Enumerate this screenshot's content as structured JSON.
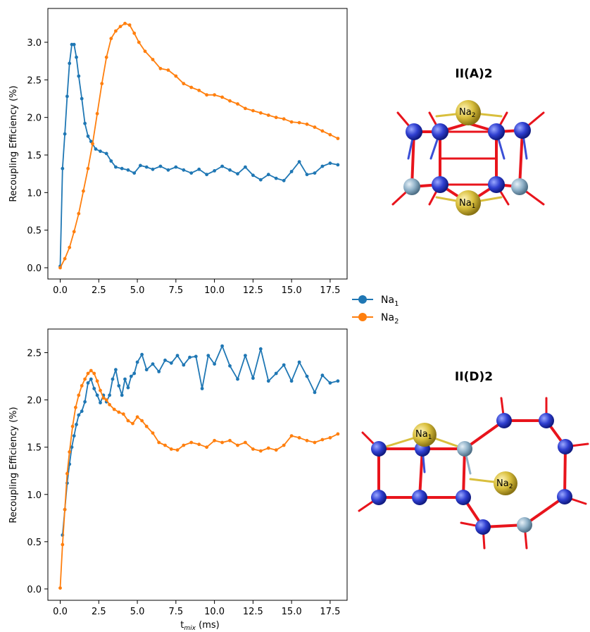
{
  "chart_data": [
    {
      "type": "line",
      "xlabel": "",
      "ylabel": "Recoupling Efficiency (%)",
      "xlim": [
        -0.8,
        18.6
      ],
      "ylim": [
        -0.15,
        3.45
      ],
      "xticks": [
        "0.0",
        "2.5",
        "5.0",
        "7.5",
        "10.0",
        "12.5",
        "15.0",
        "17.5"
      ],
      "yticks": [
        "0.0",
        "0.5",
        "1.0",
        "1.5",
        "2.0",
        "2.5",
        "3.0"
      ],
      "series": [
        {
          "name": "Na1",
          "color": "#1f77b4",
          "x": [
            0,
            0.15,
            0.3,
            0.45,
            0.6,
            0.75,
            0.9,
            1.05,
            1.2,
            1.4,
            1.6,
            1.8,
            2.0,
            2.3,
            2.6,
            3.0,
            3.3,
            3.6,
            4.0,
            4.4,
            4.8,
            5.2,
            5.6,
            6.0,
            6.5,
            7.0,
            7.5,
            8.0,
            8.5,
            9.0,
            9.5,
            10.0,
            10.5,
            11.0,
            11.5,
            12.0,
            12.5,
            13.0,
            13.5,
            14.0,
            14.5,
            15.0,
            15.5,
            16.0,
            16.5,
            17.0,
            17.5,
            18.0
          ],
          "y": [
            0.02,
            1.32,
            1.78,
            2.28,
            2.72,
            2.97,
            2.97,
            2.8,
            2.55,
            2.25,
            1.92,
            1.75,
            1.68,
            1.58,
            1.55,
            1.52,
            1.42,
            1.34,
            1.32,
            1.3,
            1.26,
            1.36,
            1.34,
            1.31,
            1.35,
            1.3,
            1.34,
            1.3,
            1.26,
            1.31,
            1.24,
            1.29,
            1.35,
            1.3,
            1.25,
            1.34,
            1.23,
            1.17,
            1.24,
            1.19,
            1.16,
            1.28,
            1.41,
            1.24,
            1.26,
            1.35,
            1.39,
            1.37
          ]
        },
        {
          "name": "Na2",
          "color": "#ff7f0e",
          "x": [
            0,
            0.3,
            0.6,
            0.9,
            1.2,
            1.5,
            1.8,
            2.1,
            2.4,
            2.7,
            3.0,
            3.3,
            3.6,
            3.9,
            4.2,
            4.5,
            4.8,
            5.1,
            5.5,
            6.0,
            6.5,
            7.0,
            7.5,
            8.0,
            8.5,
            9.0,
            9.5,
            10.0,
            10.5,
            11.0,
            11.5,
            12.0,
            12.5,
            13.0,
            13.5,
            14.0,
            14.5,
            15.0,
            15.5,
            16.0,
            16.5,
            17.0,
            17.5,
            18.0
          ],
          "y": [
            0.0,
            0.12,
            0.27,
            0.48,
            0.72,
            1.02,
            1.32,
            1.65,
            2.05,
            2.45,
            2.8,
            3.05,
            3.15,
            3.21,
            3.25,
            3.23,
            3.12,
            3.0,
            2.88,
            2.77,
            2.65,
            2.63,
            2.55,
            2.45,
            2.4,
            2.36,
            2.3,
            2.3,
            2.27,
            2.22,
            2.18,
            2.12,
            2.09,
            2.06,
            2.03,
            2.0,
            1.98,
            1.94,
            1.93,
            1.91,
            1.87,
            1.82,
            1.77,
            1.72
          ]
        }
      ]
    },
    {
      "type": "line",
      "xlabel": "t_mix (ms)",
      "ylabel": "Recoupling Efficiency (%)",
      "xlim": [
        -0.8,
        18.6
      ],
      "ylim": [
        -0.12,
        2.75
      ],
      "xticks": [
        "0.0",
        "2.5",
        "5.0",
        "7.5",
        "10.0",
        "12.5",
        "15.0",
        "17.5"
      ],
      "yticks": [
        "0.0",
        "0.5",
        "1.0",
        "1.5",
        "2.0",
        "2.5"
      ],
      "series": [
        {
          "name": "Na1",
          "color": "#1f77b4",
          "x": [
            0.15,
            0.3,
            0.45,
            0.6,
            0.75,
            0.9,
            1.05,
            1.2,
            1.4,
            1.6,
            1.8,
            2.0,
            2.2,
            2.4,
            2.6,
            2.8,
            3.0,
            3.2,
            3.4,
            3.6,
            3.8,
            4.0,
            4.2,
            4.4,
            4.6,
            4.8,
            5.0,
            5.3,
            5.6,
            6.0,
            6.4,
            6.8,
            7.2,
            7.6,
            8.0,
            8.4,
            8.8,
            9.2,
            9.6,
            10.0,
            10.5,
            11.0,
            11.5,
            12.0,
            12.5,
            13.0,
            13.5,
            14.0,
            14.5,
            15.0,
            15.5,
            16.0,
            16.5,
            17.0,
            17.5,
            18.0
          ],
          "y": [
            0.57,
            0.84,
            1.12,
            1.32,
            1.5,
            1.62,
            1.74,
            1.84,
            1.88,
            1.98,
            2.18,
            2.22,
            2.12,
            2.05,
            1.97,
            2.05,
            1.98,
            2.05,
            2.22,
            2.32,
            2.15,
            2.05,
            2.22,
            2.13,
            2.25,
            2.28,
            2.4,
            2.48,
            2.32,
            2.38,
            2.3,
            2.42,
            2.39,
            2.47,
            2.37,
            2.45,
            2.46,
            2.12,
            2.47,
            2.38,
            2.57,
            2.36,
            2.22,
            2.47,
            2.23,
            2.54,
            2.2,
            2.28,
            2.37,
            2.2,
            2.4,
            2.25,
            2.08,
            2.26,
            2.18,
            2.2
          ]
        },
        {
          "name": "Na2",
          "color": "#ff7f0e",
          "x": [
            0,
            0.15,
            0.3,
            0.45,
            0.6,
            0.8,
            1.0,
            1.2,
            1.4,
            1.6,
            1.8,
            2.0,
            2.2,
            2.4,
            2.6,
            2.8,
            3.0,
            3.2,
            3.5,
            3.8,
            4.1,
            4.4,
            4.7,
            5.0,
            5.3,
            5.6,
            6.0,
            6.4,
            6.8,
            7.2,
            7.6,
            8.0,
            8.5,
            9.0,
            9.5,
            10.0,
            10.5,
            11.0,
            11.5,
            12.0,
            12.5,
            13.0,
            13.5,
            14.0,
            14.5,
            15.0,
            15.5,
            16.0,
            16.5,
            17.0,
            17.5,
            18.0
          ],
          "y": [
            0.01,
            0.47,
            0.84,
            1.22,
            1.45,
            1.72,
            1.92,
            2.05,
            2.15,
            2.22,
            2.28,
            2.31,
            2.28,
            2.2,
            2.1,
            2.02,
            2.0,
            1.95,
            1.9,
            1.87,
            1.85,
            1.78,
            1.75,
            1.82,
            1.78,
            1.72,
            1.65,
            1.55,
            1.52,
            1.48,
            1.47,
            1.52,
            1.55,
            1.53,
            1.5,
            1.57,
            1.55,
            1.57,
            1.52,
            1.55,
            1.48,
            1.46,
            1.49,
            1.47,
            1.52,
            1.62,
            1.6,
            1.57,
            1.55,
            1.58,
            1.6,
            1.64
          ]
        }
      ]
    }
  ],
  "legend": {
    "items": [
      {
        "base": "Na",
        "sub": "1",
        "color": "#1f77b4"
      },
      {
        "base": "Na",
        "sub": "2",
        "color": "#ff7f0e"
      }
    ]
  },
  "xlabel_parts": {
    "t": "t",
    "sub": "mix",
    "unit": " (ms)"
  },
  "structures": [
    {
      "title": "II(A)2",
      "labels": [
        {
          "base": "Na",
          "sub": "2"
        },
        {
          "base": "Na",
          "sub": "1"
        }
      ]
    },
    {
      "title": "II(D)2",
      "labels": [
        {
          "base": "Na",
          "sub": "1"
        },
        {
          "base": "Na",
          "sub": "2"
        }
      ]
    }
  ],
  "colors": {
    "oxygen": "#e8141c",
    "silicon": "#3b4fd6",
    "aluminum": "#8fb1c8",
    "sodium": "#d9bf3d"
  }
}
